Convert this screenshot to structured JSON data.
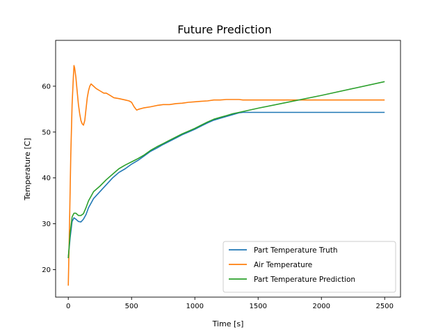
{
  "chart_data": {
    "type": "line",
    "title": "Future Prediction",
    "xlabel": "Time [s]",
    "ylabel": "Temperature [C]",
    "xlim": [
      -100,
      2625
    ],
    "ylim": [
      14,
      70
    ],
    "xticks": [
      0,
      500,
      1000,
      1500,
      2000,
      2500
    ],
    "yticks": [
      20,
      30,
      40,
      50,
      60
    ],
    "grid": false,
    "legend_position": "lower right",
    "series": [
      {
        "name": "Part Temperature Truth",
        "color": "#1f77b4",
        "points": [
          [
            0,
            22.5
          ],
          [
            15,
            27
          ],
          [
            30,
            30.5
          ],
          [
            45,
            31.3
          ],
          [
            60,
            31
          ],
          [
            80,
            30.5
          ],
          [
            100,
            30.4
          ],
          [
            120,
            31
          ],
          [
            140,
            32
          ],
          [
            160,
            33.5
          ],
          [
            180,
            34.5
          ],
          [
            200,
            35.5
          ],
          [
            250,
            37
          ],
          [
            300,
            38.5
          ],
          [
            350,
            40
          ],
          [
            400,
            41.2
          ],
          [
            450,
            42
          ],
          [
            500,
            43
          ],
          [
            550,
            43.8
          ],
          [
            600,
            44.8
          ],
          [
            650,
            45.8
          ],
          [
            700,
            46.5
          ],
          [
            750,
            47.3
          ],
          [
            800,
            48
          ],
          [
            850,
            48.7
          ],
          [
            900,
            49.4
          ],
          [
            950,
            50
          ],
          [
            1000,
            50.6
          ],
          [
            1050,
            51.3
          ],
          [
            1100,
            52
          ],
          [
            1150,
            52.6
          ],
          [
            1200,
            53
          ],
          [
            1250,
            53.4
          ],
          [
            1300,
            53.8
          ],
          [
            1350,
            54.2
          ],
          [
            1380,
            54.3
          ],
          [
            2500,
            54.3
          ]
        ]
      },
      {
        "name": "Air Temperature",
        "color": "#ff7f0e",
        "points": [
          [
            0,
            16.5
          ],
          [
            10,
            30
          ],
          [
            20,
            45
          ],
          [
            30,
            56
          ],
          [
            40,
            62
          ],
          [
            45,
            64.5
          ],
          [
            50,
            64
          ],
          [
            60,
            62
          ],
          [
            70,
            59
          ],
          [
            80,
            56
          ],
          [
            90,
            54
          ],
          [
            100,
            52.5
          ],
          [
            110,
            51.8
          ],
          [
            120,
            51.5
          ],
          [
            130,
            52.5
          ],
          [
            140,
            55
          ],
          [
            150,
            57.5
          ],
          [
            160,
            59
          ],
          [
            170,
            60
          ],
          [
            180,
            60.5
          ],
          [
            200,
            60
          ],
          [
            220,
            59.5
          ],
          [
            250,
            59
          ],
          [
            280,
            58.5
          ],
          [
            300,
            58.5
          ],
          [
            330,
            58
          ],
          [
            360,
            57.5
          ],
          [
            400,
            57.3
          ],
          [
            450,
            57
          ],
          [
            480,
            56.8
          ],
          [
            500,
            56.5
          ],
          [
            520,
            55.5
          ],
          [
            540,
            54.8
          ],
          [
            560,
            55
          ],
          [
            600,
            55.3
          ],
          [
            650,
            55.5
          ],
          [
            700,
            55.8
          ],
          [
            750,
            56
          ],
          [
            800,
            56
          ],
          [
            850,
            56.2
          ],
          [
            900,
            56.3
          ],
          [
            950,
            56.5
          ],
          [
            1000,
            56.6
          ],
          [
            1050,
            56.7
          ],
          [
            1100,
            56.8
          ],
          [
            1150,
            57
          ],
          [
            1200,
            57
          ],
          [
            1250,
            57.1
          ],
          [
            1300,
            57.1
          ],
          [
            1350,
            57.1
          ],
          [
            1380,
            57
          ],
          [
            2500,
            57
          ]
        ]
      },
      {
        "name": "Part Temperature Prediction",
        "color": "#2ca02c",
        "points": [
          [
            0,
            22.5
          ],
          [
            15,
            28
          ],
          [
            30,
            31.5
          ],
          [
            45,
            32.3
          ],
          [
            60,
            32.3
          ],
          [
            80,
            31.8
          ],
          [
            100,
            31.8
          ],
          [
            120,
            32.2
          ],
          [
            140,
            33.5
          ],
          [
            160,
            35
          ],
          [
            180,
            36
          ],
          [
            200,
            37
          ],
          [
            250,
            38.2
          ],
          [
            300,
            39.6
          ],
          [
            350,
            40.8
          ],
          [
            400,
            42
          ],
          [
            450,
            42.8
          ],
          [
            500,
            43.5
          ],
          [
            550,
            44.2
          ],
          [
            600,
            45
          ],
          [
            650,
            46
          ],
          [
            700,
            46.8
          ],
          [
            750,
            47.5
          ],
          [
            800,
            48.2
          ],
          [
            850,
            48.9
          ],
          [
            900,
            49.6
          ],
          [
            950,
            50.2
          ],
          [
            1000,
            50.8
          ],
          [
            1050,
            51.5
          ],
          [
            1100,
            52.2
          ],
          [
            1150,
            52.8
          ],
          [
            1200,
            53.2
          ],
          [
            1250,
            53.6
          ],
          [
            1300,
            54
          ],
          [
            1350,
            54.3
          ],
          [
            1400,
            54.6
          ],
          [
            1500,
            55.2
          ],
          [
            1750,
            56.6
          ],
          [
            2000,
            58
          ],
          [
            2250,
            59.5
          ],
          [
            2500,
            61
          ]
        ]
      }
    ]
  }
}
